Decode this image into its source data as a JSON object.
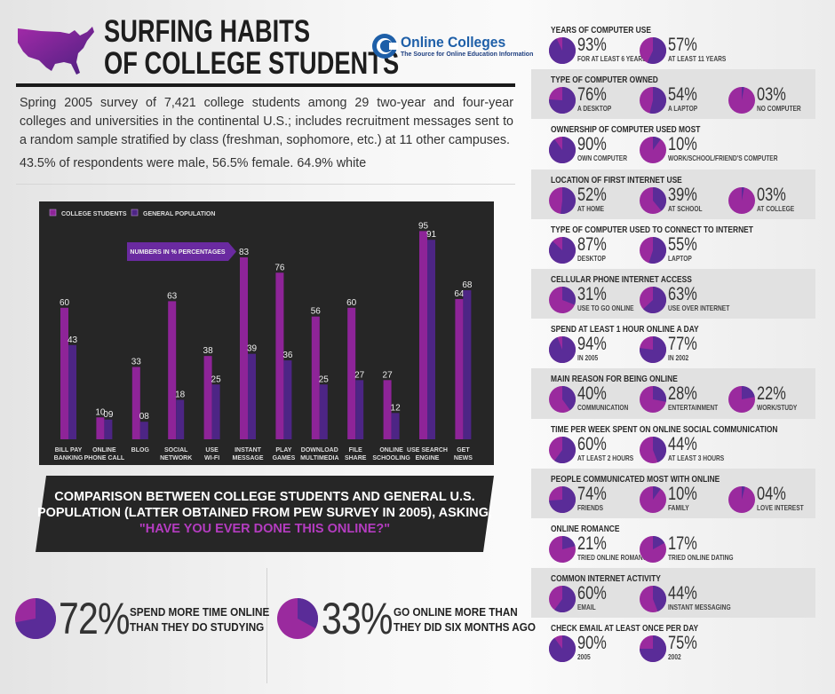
{
  "header": {
    "title_line1": "SURFING HABITS",
    "title_line2": "OF COLLEGE STUDENTS",
    "logo_name": "Online Colleges",
    "logo_tagline": "The Source for Online Education Information"
  },
  "intro": "Spring 2005 survey of 7,421 college students among 29 two-year and four-year colleges and universities in the continental U.S.; includes recruitment messages sent to a random sample stratified by class (freshman, sophomore, etc.) at 11 other campuses.",
  "demographics": "43.5% of respondents were male, 56.5% female. 64.9% white",
  "colors": {
    "college": "#8e2498",
    "general": "#4d2585",
    "pie_dark": "#5a2c98",
    "pie_light": "#9a2a9e",
    "chart_bg": "#262626",
    "accent": "#b43cc0"
  },
  "chart_data": {
    "type": "bar",
    "categories": [
      "BILL PAY|BANKING",
      "ONLINE|PHONE CALL",
      "BLOG",
      "SOCIAL|NETWORK",
      "USE|WI-FI",
      "INSTANT|MESSAGE",
      "PLAY|GAMES",
      "DOWNLOAD|MULTIMEDIA",
      "FILE|SHARE",
      "ONLINE|SCHOOLING",
      "USE SEARCH|ENGINE",
      "GET|NEWS"
    ],
    "series": [
      {
        "name": "COLLEGE STUDENTS",
        "values": [
          60,
          10,
          33,
          63,
          38,
          83,
          76,
          56,
          60,
          27,
          95,
          64
        ],
        "labels": [
          "60",
          "10",
          "33",
          "63",
          "38",
          "83",
          "76",
          "56",
          "60",
          "27",
          "95",
          "64"
        ]
      },
      {
        "name": "GENERAL POPULATION",
        "values": [
          43,
          9,
          8,
          18,
          25,
          39,
          36,
          25,
          27,
          12,
          91,
          68
        ],
        "labels": [
          "43",
          "09",
          "08",
          "18",
          "25",
          "39",
          "36",
          "25",
          "27",
          "12",
          "91",
          "68"
        ]
      }
    ],
    "annotation": "NUMBERS IN % PERCENTAGES",
    "ylim": [
      0,
      100
    ],
    "grid": false,
    "legend": "top-left"
  },
  "banner": {
    "line1": "COMPARISON BETWEEN COLLEGE STUDENTS AND GENERAL U.S.",
    "line2": "POPULATION (LATTER OBTAINED FROM PEW SURVEY IN 2005), ASKING,",
    "question": "\"HAVE YOU EVER DONE THIS ONLINE?\""
  },
  "stats": [
    {
      "pct": "72%",
      "value": 72,
      "line1": "SPEND MORE TIME ONLINE",
      "line2": "THAN THEY DO STUDYING"
    },
    {
      "pct": "33%",
      "value": 33,
      "line1": "GO ONLINE MORE THAN",
      "line2": "THEY DID SIX MONTHS AGO"
    }
  ],
  "sections": [
    {
      "title": "YEARS OF COMPUTER USE",
      "items": [
        {
          "pct": "93%",
          "label": "FOR AT LEAST 6 YEARS"
        },
        {
          "pct": "57%",
          "label": "AT LEAST 11 YEARS"
        }
      ]
    },
    {
      "title": "TYPE OF COMPUTER OWNED",
      "items": [
        {
          "pct": "76%",
          "label": "A DESKTOP"
        },
        {
          "pct": "54%",
          "label": "A LAPTOP"
        },
        {
          "pct": "03%",
          "label": "NO COMPUTER"
        }
      ]
    },
    {
      "title": "OWNERSHIP OF COMPUTER USED MOST",
      "items": [
        {
          "pct": "90%",
          "label": "OWN COMPUTER"
        },
        {
          "pct": "10%",
          "label": "WORK/SCHOOL/FRIEND'S COMPUTER"
        }
      ]
    },
    {
      "title": "LOCATION OF FIRST INTERNET USE",
      "items": [
        {
          "pct": "52%",
          "label": "AT HOME"
        },
        {
          "pct": "39%",
          "label": "AT SCHOOL"
        },
        {
          "pct": "03%",
          "label": "AT COLLEGE"
        }
      ]
    },
    {
      "title": "TYPE OF COMPUTER USED TO CONNECT TO INTERNET",
      "items": [
        {
          "pct": "87%",
          "label": "DESKTOP"
        },
        {
          "pct": "55%",
          "label": "LAPTOP"
        }
      ]
    },
    {
      "title": "CELLULAR PHONE INTERNET ACCESS",
      "items": [
        {
          "pct": "31%",
          "label": "USE TO GO ONLINE"
        },
        {
          "pct": "63%",
          "label": "USE OVER INTERNET"
        }
      ]
    },
    {
      "title": "SPEND AT LEAST 1 HOUR ONLINE A DAY",
      "items": [
        {
          "pct": "94%",
          "label": "IN 2005"
        },
        {
          "pct": "77%",
          "label": "IN 2002"
        }
      ]
    },
    {
      "title": "MAIN REASON FOR BEING ONLINE",
      "items": [
        {
          "pct": "40%",
          "label": "COMMUNICATION"
        },
        {
          "pct": "28%",
          "label": "ENTERTAINMENT"
        },
        {
          "pct": "22%",
          "label": "WORK/STUDY"
        }
      ]
    },
    {
      "title": "TIME PER WEEK SPENT ON ONLINE SOCIAL COMMUNICATION",
      "items": [
        {
          "pct": "60%",
          "label": "AT LEAST 2 HOURS"
        },
        {
          "pct": "44%",
          "label": "AT LEAST 3 HOURS"
        }
      ]
    },
    {
      "title": "PEOPLE COMMUNICATED MOST WITH ONLINE",
      "items": [
        {
          "pct": "74%",
          "label": "FRIENDS"
        },
        {
          "pct": "10%",
          "label": "FAMILY"
        },
        {
          "pct": "04%",
          "label": "LOVE INTEREST"
        }
      ]
    },
    {
      "title": "ONLINE ROMANCE",
      "items": [
        {
          "pct": "21%",
          "label": "TRIED ONLINE ROMANCE"
        },
        {
          "pct": "17%",
          "label": "TRIED ONLINE DATING"
        }
      ]
    },
    {
      "title": "COMMON INTERNET ACTIVITY",
      "items": [
        {
          "pct": "60%",
          "label": "EMAIL"
        },
        {
          "pct": "44%",
          "label": "INSTANT MESSAGING"
        }
      ]
    },
    {
      "title": "CHECK EMAIL AT LEAST ONCE PER DAY",
      "items": [
        {
          "pct": "90%",
          "label": "2005"
        },
        {
          "pct": "75%",
          "label": "2002"
        }
      ]
    }
  ]
}
